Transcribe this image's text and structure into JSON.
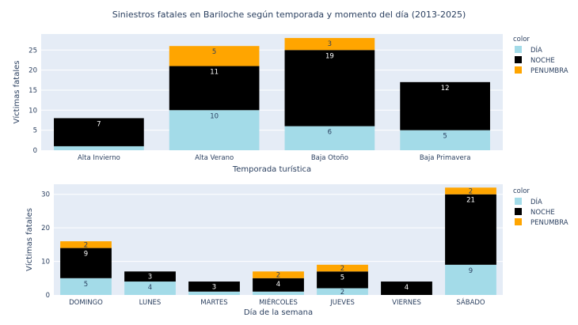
{
  "figure": {
    "title": "Siniestros fatales en Bariloche según temporada y momento del día (2013-2025)"
  },
  "colors": {
    "plot_bg": "#e5ecf6",
    "grid": "#ffffff",
    "DÍA": "#a3dbe8",
    "NOCHE": "#000000",
    "PENUMBRA": "#ffa500",
    "text": "#2a3f5f"
  },
  "chart_data": [
    {
      "type": "bar",
      "stacked": true,
      "xlabel": "Temporada turística",
      "ylabel": "Víctimas fatales",
      "ylim": [
        0,
        29
      ],
      "yticks": [
        0,
        5,
        10,
        15,
        20,
        25
      ],
      "grid": true,
      "legend_title": "color",
      "legend_position": "right",
      "categories": [
        "Alta Invierno",
        "Alta Verano",
        "Baja Otoño",
        "Baja Primavera"
      ],
      "series": [
        {
          "name": "DÍA",
          "values": [
            1,
            10,
            6,
            5
          ],
          "labels": [
            "",
            "10",
            "6",
            "5"
          ]
        },
        {
          "name": "NOCHE",
          "values": [
            7,
            11,
            19,
            12
          ],
          "labels": [
            "7",
            "11",
            "19",
            "12"
          ]
        },
        {
          "name": "PENUMBRA",
          "values": [
            0,
            5,
            3,
            0
          ],
          "labels": [
            "",
            "5",
            "3",
            ""
          ]
        }
      ]
    },
    {
      "type": "bar",
      "stacked": true,
      "xlabel": "Día de la semana",
      "ylabel": "Víctimas fatales",
      "ylim": [
        0,
        33
      ],
      "yticks": [
        0,
        10,
        20,
        30
      ],
      "grid": true,
      "legend_title": "color",
      "legend_position": "right",
      "categories": [
        "DOMINGO",
        "LUNES",
        "MARTES",
        "MIÉRCOLES",
        "JUEVES",
        "VIERNES",
        "SÁBADO"
      ],
      "series": [
        {
          "name": "DÍA",
          "values": [
            5,
            4,
            1,
            1,
            2,
            0,
            9
          ],
          "labels": [
            "5",
            "4",
            "",
            "",
            "2",
            "",
            "9"
          ]
        },
        {
          "name": "NOCHE",
          "values": [
            9,
            3,
            3,
            4,
            5,
            4,
            21
          ],
          "labels": [
            "9",
            "3",
            "3",
            "4",
            "5",
            "4",
            "21"
          ]
        },
        {
          "name": "PENUMBRA",
          "values": [
            2,
            0,
            0,
            2,
            2,
            0,
            2
          ],
          "labels": [
            "2",
            "",
            "",
            "2",
            "2",
            "",
            "2"
          ]
        }
      ]
    }
  ]
}
